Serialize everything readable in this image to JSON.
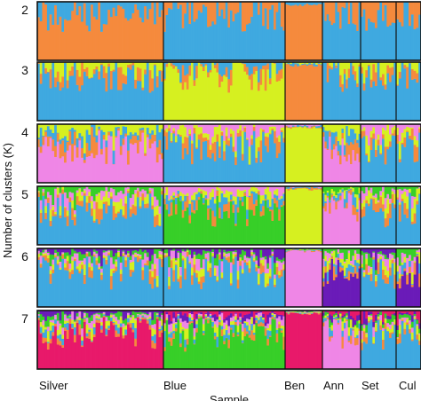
{
  "chart_data": {
    "type": "bar",
    "subtype": "stacked-100-structure-plot",
    "ylabel": "Number of clusters (K)",
    "xlabel": "Sample",
    "k_values": [
      "2",
      "3",
      "4",
      "5",
      "6",
      "7"
    ],
    "populations": [
      {
        "name": "Silver",
        "n_bars": 52
      },
      {
        "name": "Blue",
        "n_bars": 53
      },
      {
        "name": "Ben",
        "n_bars": 16
      },
      {
        "name": "Ann",
        "n_bars": 18
      },
      {
        "name": "Set",
        "n_bars": 15
      },
      {
        "name": "Cul",
        "n_bars": 10
      }
    ],
    "cluster_colors": [
      "#f58a3d",
      "#3fa9e0",
      "#d6f020",
      "#ef86e6",
      "#37cf28",
      "#6a1bb8",
      "#e8196a"
    ],
    "dominant_cluster_by_panel": [
      {
        "k": "2",
        "Silver": 0,
        "Blue": 1,
        "Ben": 0,
        "Ann": 1,
        "Set": 1,
        "Cul": 1
      },
      {
        "k": "3",
        "Silver": 1,
        "Blue": 2,
        "Ben": 0,
        "Ann": 1,
        "Set": 1,
        "Cul": 1
      },
      {
        "k": "4",
        "Silver": 3,
        "Blue": 1,
        "Ben": 2,
        "Ann": 3,
        "Set": 1,
        "Cul": 1
      },
      {
        "k": "5",
        "Silver": 1,
        "Blue": 4,
        "Ben": 2,
        "Ann": 3,
        "Set": 1,
        "Cul": 1
      },
      {
        "k": "6",
        "Silver": 1,
        "Blue": 1,
        "Ben": 3,
        "Ann": 5,
        "Set": 1,
        "Cul": 5
      },
      {
        "k": "7",
        "Silver": 6,
        "Blue": 4,
        "Ben": 6,
        "Ann": 3,
        "Set": 1,
        "Cul": 1
      }
    ]
  }
}
